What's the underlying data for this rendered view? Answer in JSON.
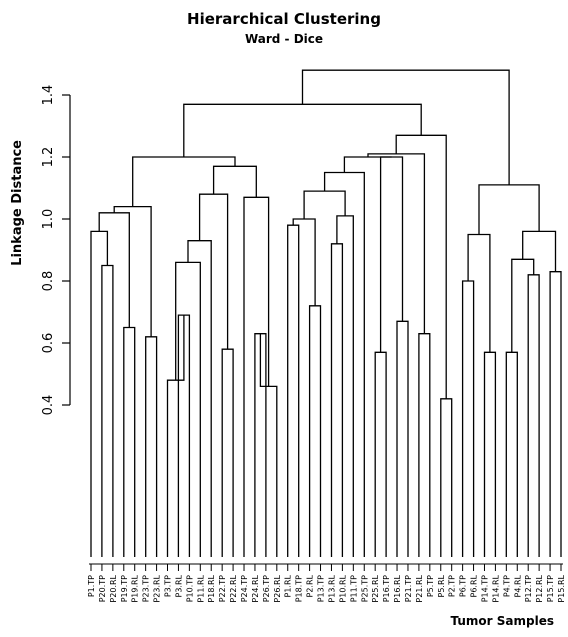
{
  "chart_data": {
    "type": "dendrogram",
    "title": "Hierarchical Clustering",
    "subtitle": "Ward - Dice",
    "ylabel": "Linkage Distance",
    "xlabel": "Tumor Samples",
    "ylim": [
      0.0,
      1.55
    ],
    "yticks": [
      0.4,
      0.6,
      0.8,
      1.0,
      1.2,
      1.4
    ],
    "leaves": [
      "P1.TP",
      "P20.TP",
      "P20.RL",
      "P19.TP",
      "P19.RL",
      "P23.TP",
      "P23.RL",
      "P3.TP",
      "P3.RL",
      "P10.TP",
      "P11.RL",
      "P18.RL",
      "P22.TP",
      "P22.RL",
      "P24.TP",
      "P24.RL",
      "P26.TP",
      "P26.RL",
      "P1.RL",
      "P18.TP",
      "P2.RL",
      "P13.TP",
      "P13.RL",
      "P10.RL",
      "P11.TP",
      "P25.TP",
      "P25.RL",
      "P16.TP",
      "P16.RL",
      "P21.TP",
      "P21.RL",
      "P5.TP",
      "P5.RL",
      "P2.TP",
      "P6.TP",
      "P6.RL",
      "P14.TP",
      "P14.RL",
      "P4.TP",
      "P4.RL",
      "P12.TP",
      "P12.RL",
      "P15.TP",
      "P15.RL"
    ],
    "merges": [
      {
        "a": "P20.TP",
        "b": "P20.RL",
        "height": 0.85
      },
      {
        "a": "P1.TP",
        "b": "C1",
        "height": 0.96
      },
      {
        "a": "P19.TP",
        "b": "P19.RL",
        "height": 0.65
      },
      {
        "a": "C2",
        "b": "C3",
        "height": 1.02
      },
      {
        "a": "P23.TP",
        "b": "P23.RL",
        "height": 0.62
      },
      {
        "a": "C4",
        "b": "C5",
        "height": 1.04
      },
      {
        "a": "P3.RL",
        "b": "P10.TP",
        "height": 0.69
      },
      {
        "a": "P3.TP",
        "b": "C7",
        "height": 0.48
      },
      {
        "a": "C8",
        "b": "P11.RL",
        "height": 0.86
      },
      {
        "a": "C9",
        "b": "P18.RL",
        "height": 0.93
      },
      {
        "a": "P22.TP",
        "b": "P22.RL",
        "height": 0.58
      },
      {
        "a": "C10",
        "b": "C11",
        "height": 1.08
      },
      {
        "a": "P24.RL",
        "b": "P26.TP",
        "height": 0.63
      },
      {
        "a": "C13",
        "b": "P26.RL",
        "height": 0.46
      },
      {
        "a": "P24.TP",
        "b": "C14",
        "height": 1.07
      },
      {
        "a": "C12",
        "b": "C15",
        "height": 1.17
      },
      {
        "a": "C6",
        "b": "C16",
        "height": 1.2
      },
      {
        "a": "P1.RL",
        "b": "P18.TP",
        "height": 0.98
      },
      {
        "a": "P2.RL",
        "b": "P13.TP",
        "height": 0.72
      },
      {
        "a": "C18",
        "b": "C19",
        "height": 1.0
      },
      {
        "a": "P13.RL",
        "b": "P10.RL",
        "height": 0.92
      },
      {
        "a": "C21",
        "b": "P11.TP",
        "height": 1.01
      },
      {
        "a": "C20",
        "b": "C22",
        "height": 1.09
      },
      {
        "a": "C23",
        "b": "P25.TP",
        "height": 1.15
      },
      {
        "a": "P25.RL",
        "b": "P16.TP",
        "height": 0.57
      },
      {
        "a": "P16.RL",
        "b": "P21.TP",
        "height": 0.67
      },
      {
        "a": "C25",
        "b": "C26",
        "height": 1.2
      },
      {
        "a": "C24",
        "b": "C27",
        "height": 1.2
      },
      {
        "a": "P21.RL",
        "b": "P5.TP",
        "height": 0.63
      },
      {
        "a": "C28",
        "b": "C29",
        "height": 1.21
      },
      {
        "a": "P5.RL",
        "b": "P2.TP",
        "height": 0.42
      },
      {
        "a": "C30",
        "b": "C31",
        "height": 1.27
      },
      {
        "a": "C17",
        "b": "C32",
        "height": 1.37
      },
      {
        "a": "P6.TP",
        "b": "P6.RL",
        "height": 0.8
      },
      {
        "a": "P14.TP",
        "b": "P14.RL",
        "height": 0.57
      },
      {
        "a": "C34",
        "b": "C35",
        "height": 0.95
      },
      {
        "a": "P4.TP",
        "b": "P4.RL",
        "height": 0.57
      },
      {
        "a": "P12.TP",
        "b": "P12.RL",
        "height": 0.82
      },
      {
        "a": "C37",
        "b": "C38",
        "height": 0.87
      },
      {
        "a": "P15.TP",
        "b": "P15.RL",
        "height": 0.83
      },
      {
        "a": "C39",
        "b": "C40",
        "height": 0.96
      },
      {
        "a": "C36",
        "b": "C41",
        "height": 1.11
      },
      {
        "a": "C33",
        "b": "C42",
        "height": 1.48
      }
    ]
  }
}
